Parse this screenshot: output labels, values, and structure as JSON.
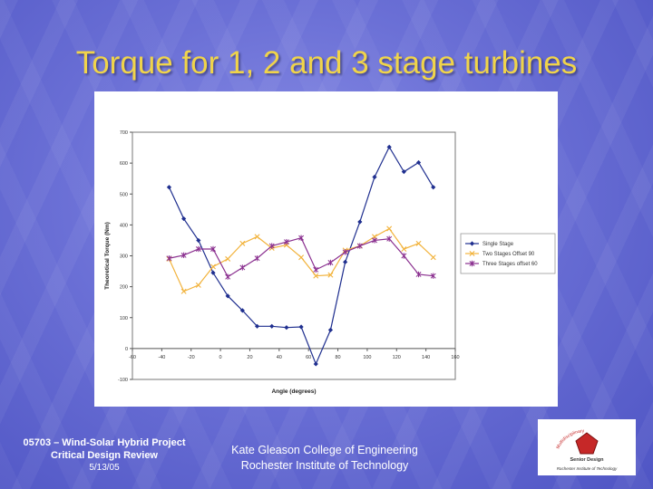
{
  "slide": {
    "title": "Torque for 1, 2 and 3 stage turbines"
  },
  "footer": {
    "project_line1": "05703 – Wind-Solar Hybrid Project",
    "project_line2": "Critical Design Review",
    "date": "5/13/05",
    "college": "Kate Gleason College of Engineering",
    "institute": "Rochester Institute of Technology"
  },
  "logo": {
    "top_text": "Multidisciplinary",
    "middle_text": "Senior Design",
    "bottom_text": "Rochester Institute of Technology"
  },
  "colors": {
    "title": "#f0d44a",
    "single_stage": "#1f2f8f",
    "two_stages": "#f2b33d",
    "three_stages": "#8a2f8f",
    "logo_red": "#c62828"
  },
  "chart_data": {
    "type": "line",
    "xlabel": "Angle (degrees)",
    "ylabel": "Theoretical Torque (Nm)",
    "xlim": [
      -60,
      160
    ],
    "ylim": [
      -100,
      700
    ],
    "xticks": [
      -60,
      -40,
      -20,
      0,
      20,
      40,
      60,
      80,
      100,
      120,
      140,
      160
    ],
    "yticks": [
      -100,
      0,
      100,
      200,
      300,
      400,
      500,
      600,
      700
    ],
    "grid": false,
    "legend_position": "right",
    "series": [
      {
        "name": "Single Stage",
        "color": "#1f2f8f",
        "marker": "diamond",
        "points": [
          [
            -35,
            522
          ],
          [
            -25,
            420
          ],
          [
            -15,
            350
          ],
          [
            -5,
            245
          ],
          [
            5,
            170
          ],
          [
            15,
            123
          ],
          [
            25,
            72
          ],
          [
            35,
            72
          ],
          [
            45,
            68
          ],
          [
            55,
            70
          ],
          [
            65,
            -50
          ],
          [
            75,
            60
          ],
          [
            85,
            280
          ],
          [
            95,
            410
          ],
          [
            105,
            555
          ],
          [
            115,
            652
          ],
          [
            125,
            572
          ],
          [
            135,
            602
          ],
          [
            145,
            522
          ]
        ]
      },
      {
        "name": "Two Stages Offset 90",
        "color": "#f2b33d",
        "marker": "x",
        "points": [
          [
            -35,
            290
          ],
          [
            -25,
            185
          ],
          [
            -15,
            205
          ],
          [
            -5,
            265
          ],
          [
            5,
            290
          ],
          [
            15,
            340
          ],
          [
            25,
            362
          ],
          [
            35,
            325
          ],
          [
            45,
            335
          ],
          [
            55,
            295
          ],
          [
            65,
            235
          ],
          [
            75,
            238
          ],
          [
            85,
            318
          ],
          [
            95,
            332
          ],
          [
            105,
            362
          ],
          [
            115,
            388
          ],
          [
            125,
            322
          ],
          [
            135,
            340
          ],
          [
            145,
            295
          ]
        ]
      },
      {
        "name": "Three Stages offset 60",
        "color": "#8a2f8f",
        "marker": "asterisk",
        "points": [
          [
            -35,
            292
          ],
          [
            -25,
            302
          ],
          [
            -15,
            322
          ],
          [
            -5,
            322
          ],
          [
            5,
            232
          ],
          [
            15,
            262
          ],
          [
            25,
            292
          ],
          [
            35,
            332
          ],
          [
            45,
            345
          ],
          [
            55,
            358
          ],
          [
            65,
            255
          ],
          [
            75,
            278
          ],
          [
            85,
            312
          ],
          [
            95,
            332
          ],
          [
            105,
            350
          ],
          [
            115,
            355
          ],
          [
            125,
            300
          ],
          [
            135,
            240
          ],
          [
            145,
            235
          ]
        ]
      }
    ]
  }
}
